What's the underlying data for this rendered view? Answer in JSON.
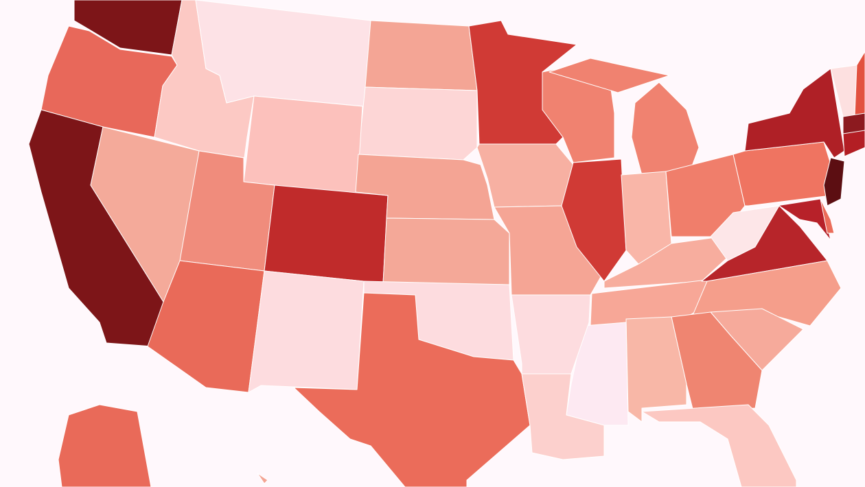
{
  "map": {
    "background": "#fff8fc",
    "border_color": "#ffffff",
    "regions": [
      {
        "color": "#7d1518"
      },
      {
        "color": "#e8685a"
      },
      {
        "color": "#7d1518"
      },
      {
        "color": "#fcc9c4"
      },
      {
        "color": "#fde2e6"
      },
      {
        "color": "#f4a595"
      },
      {
        "color": "#fdd6d6"
      },
      {
        "color": "#fcc1bc"
      },
      {
        "color": "#f4aa9a"
      },
      {
        "color": "#f08c7c"
      },
      {
        "color": "#c02b2b"
      },
      {
        "color": "#e96a59"
      },
      {
        "color": "#fddcdf"
      },
      {
        "color": "#f4a494"
      },
      {
        "color": "#f4a898"
      },
      {
        "color": "#fddcdf"
      },
      {
        "color": "#eb6c5a"
      },
      {
        "color": "#d03a35"
      },
      {
        "color": "#f7b0a2"
      },
      {
        "color": "#f5a595"
      },
      {
        "color": "#f08270"
      },
      {
        "color": "#d03a35"
      },
      {
        "color": "#f08270"
      },
      {
        "color": "#f08270"
      },
      {
        "color": "#f9b6a8"
      },
      {
        "color": "#f07e6b"
      },
      {
        "color": "#f7ad9e"
      },
      {
        "color": "#f7a797"
      },
      {
        "color": "#fde6e8"
      },
      {
        "color": "#b7252a"
      },
      {
        "color": "#f59e8b"
      },
      {
        "color": "#f6aa9b"
      },
      {
        "color": "#ef8571"
      },
      {
        "color": "#f8b7a7"
      },
      {
        "color": "#fde9f2"
      },
      {
        "color": "#fddcdf"
      },
      {
        "color": "#fcd0cd"
      },
      {
        "color": "#fcc8c2"
      },
      {
        "color": "#ef7461"
      },
      {
        "color": "#af2026"
      },
      {
        "color": "#b72129"
      },
      {
        "color": "#eb6c5a"
      },
      {
        "color": "#5c0e12"
      },
      {
        "color": "#fde0e0"
      },
      {
        "color": "#e2513f"
      },
      {
        "color": "#8c1a1f"
      },
      {
        "color": "#b31e24"
      },
      {
        "color": "#e96a59"
      },
      {
        "color": "#f4a494"
      }
    ]
  }
}
